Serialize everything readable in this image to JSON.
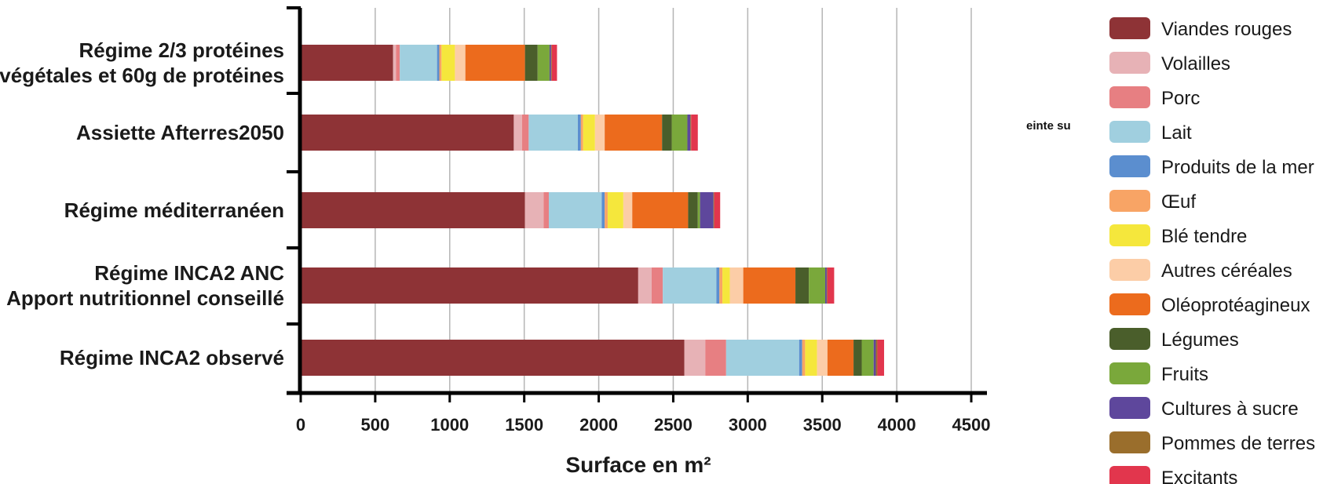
{
  "chart_data": {
    "type": "bar",
    "orientation": "horizontal",
    "stacked": true,
    "categories": [
      "Régime 2/3 protéines\nvégétales et 60g de protéines",
      "Assiette Afterres2050",
      "Régime méditerranéen",
      "Régime INCA2 ANC\nApport nutritionnel conseillé",
      "Régime INCA2 observé"
    ],
    "series": [
      {
        "name": "Viandes rouges",
        "color": "#8e3336",
        "values": [
          620,
          1430,
          1505,
          2265,
          2575
        ]
      },
      {
        "name": "Volailles",
        "color": "#e7b2b6",
        "values": [
          20,
          55,
          125,
          90,
          140
        ]
      },
      {
        "name": "Porc",
        "color": "#e77f82",
        "values": [
          25,
          45,
          35,
          75,
          140
        ]
      },
      {
        "name": "Lait",
        "color": "#a0cfdf",
        "values": [
          250,
          330,
          355,
          360,
          490
        ]
      },
      {
        "name": "Produits de la mer",
        "color": "#5b8ecf",
        "values": [
          15,
          20,
          20,
          20,
          20
        ]
      },
      {
        "name": "Œuf",
        "color": "#f8a465",
        "values": [
          15,
          15,
          20,
          20,
          20
        ]
      },
      {
        "name": "Blé tendre",
        "color": "#f5e73c",
        "values": [
          90,
          80,
          105,
          50,
          80
        ]
      },
      {
        "name": "Autres céréales",
        "color": "#fccda7",
        "values": [
          70,
          65,
          60,
          90,
          70
        ]
      },
      {
        "name": "Oléoprotéagineux",
        "color": "#ec6b1d",
        "values": [
          400,
          385,
          375,
          350,
          175
        ]
      },
      {
        "name": "Légumes",
        "color": "#4a5e2b",
        "values": [
          85,
          65,
          65,
          90,
          55
        ]
      },
      {
        "name": "Fruits",
        "color": "#7aa83b",
        "values": [
          80,
          105,
          15,
          110,
          80
        ]
      },
      {
        "name": "Cultures à sucre",
        "color": "#5e479c",
        "values": [
          10,
          20,
          90,
          10,
          15
        ]
      },
      {
        "name": "Pommes de terres",
        "color": "#9a6e2c",
        "values": [
          5,
          5,
          5,
          5,
          10
        ]
      },
      {
        "name": "Excitants",
        "color": "#e2364d",
        "values": [
          35,
          45,
          40,
          45,
          45
        ]
      }
    ],
    "xlabel": "Surface en m²",
    "ylabel": "",
    "xlim": [
      0,
      4500
    ],
    "xticks": [
      0,
      500,
      1000,
      1500,
      2000,
      2500,
      3000,
      3500,
      4000,
      4500
    ],
    "grid": "vertical",
    "legend_position": "right"
  },
  "stray_text": "einte su"
}
